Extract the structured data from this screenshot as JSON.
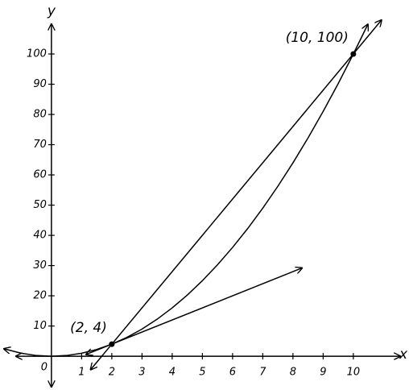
{
  "chart_data": {
    "type": "line",
    "x_label": "x",
    "y_label": "y",
    "origin_label": "0",
    "xlim": [
      -1.57,
      11.55
    ],
    "ylim": [
      -10.1,
      115.2
    ],
    "xticks": [
      1,
      2,
      3,
      4,
      5,
      6,
      7,
      8,
      9,
      10
    ],
    "yticks": [
      10,
      20,
      30,
      40,
      50,
      60,
      70,
      80,
      90,
      100
    ],
    "series": [
      {
        "color": "#000000",
        "x": [
          -1.57,
          -1,
          -0.5,
          0,
          0.5,
          1,
          1.5,
          2,
          2.5,
          3,
          3.5,
          4,
          4.5,
          5,
          5.5,
          6,
          6.5,
          7,
          7.5,
          8,
          8.5,
          9,
          9.5,
          10,
          10.48
        ],
        "values": [
          2.46,
          1,
          0.25,
          0,
          0.25,
          1,
          2.25,
          4,
          6.25,
          9,
          12.25,
          16,
          20.25,
          25,
          30.25,
          36,
          42.25,
          49,
          56.25,
          64,
          72.25,
          81,
          90.25,
          100,
          109.8
        ]
      },
      {
        "color": "#000000",
        "x": [
          1.3,
          10.93
        ],
        "values": [
          -4.4,
          111.2
        ]
      },
      {
        "color": "#000000",
        "x": [
          1.15,
          8.3
        ],
        "values": [
          0.6,
          29.2
        ]
      }
    ],
    "points": [
      {
        "x": 2,
        "y": 4,
        "label": "(2, 4)"
      },
      {
        "x": 10,
        "y": 100,
        "label": "(10, 100)"
      }
    ]
  }
}
